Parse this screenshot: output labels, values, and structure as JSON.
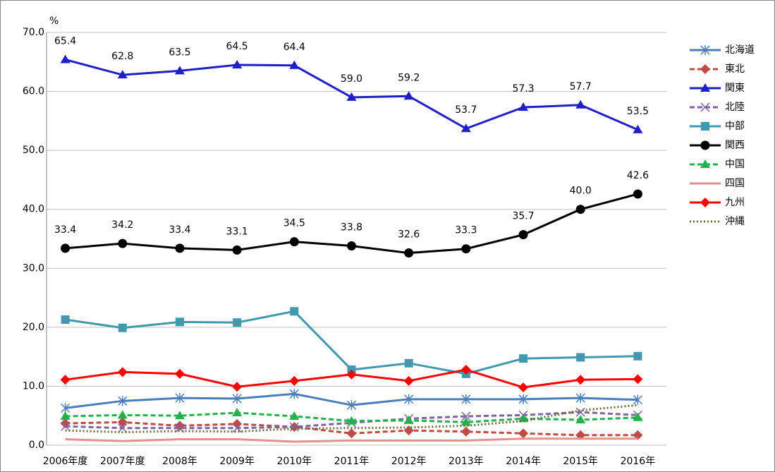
{
  "chart_data": {
    "type": "line",
    "y_unit": "%",
    "categories": [
      "2006年度",
      "2007年度",
      "2008年",
      "2009年",
      "2010年",
      "2011年",
      "2012年",
      "2013年",
      "2014年",
      "2015年",
      "2016年"
    ],
    "ylim": [
      0,
      70
    ],
    "yticks": [
      {
        "value": 0,
        "label": "0.0"
      },
      {
        "value": 10,
        "label": "10.0"
      },
      {
        "value": 20,
        "label": "20.0"
      },
      {
        "value": 30,
        "label": "30.0"
      },
      {
        "value": 40,
        "label": "40.0"
      },
      {
        "value": 50,
        "label": "50.0"
      },
      {
        "value": 60,
        "label": "60.0"
      },
      {
        "value": 70,
        "label": "70.0"
      }
    ],
    "grid": true,
    "legend": "right",
    "series": [
      {
        "name": "北海道",
        "color": "#4a7ebb",
        "marker": "asterisk",
        "dash": "solid",
        "values": [
          6.3,
          7.5,
          8.0,
          7.9,
          8.7,
          6.8,
          7.8,
          7.8,
          7.8,
          8.0,
          7.7
        ]
      },
      {
        "name": "東北",
        "color": "#be4b48",
        "marker": "diamond",
        "dash": "dashed",
        "values": [
          3.7,
          3.9,
          3.3,
          3.6,
          3.1,
          2.0,
          2.5,
          2.3,
          2.0,
          1.7,
          1.7
        ]
      },
      {
        "name": "関東",
        "color": "#1f1fc8",
        "marker": "triangle",
        "dash": "solid",
        "values": [
          65.4,
          62.8,
          63.5,
          64.5,
          64.4,
          59,
          59.2,
          53.7,
          57.3,
          57.7,
          53.5
        ],
        "value_labels": [
          "65.4",
          "62.8",
          "63.5",
          "64.5",
          "64.4",
          "59.0",
          "59.2",
          "53.7",
          "57.3",
          "57.7",
          "53.5"
        ]
      },
      {
        "name": "北陸",
        "color": "#7f63a2",
        "marker": "x",
        "dash": "dashed",
        "values": [
          3.2,
          2.9,
          2.9,
          2.9,
          3.1,
          3.8,
          4.5,
          4.9,
          5.1,
          5.6,
          5.1
        ]
      },
      {
        "name": "中部",
        "color": "#4198af",
        "marker": "square",
        "dash": "solid",
        "values": [
          21.3,
          19.9,
          20.9,
          20.8,
          22.7,
          12.8,
          13.9,
          12.1,
          14.7,
          14.9,
          15.1
        ]
      },
      {
        "name": "関西",
        "color": "#000000",
        "marker": "circle",
        "dash": "solid",
        "values": [
          33.4,
          34.2,
          33.4,
          33.1,
          34.5,
          33.8,
          32.6,
          33.3,
          35.7,
          40,
          42.6
        ],
        "value_labels": [
          "33.4",
          "34.2",
          "33.4",
          "33.1",
          "34.5",
          "33.8",
          "32.6",
          "33.3",
          "35.7",
          "40.0",
          "42.6"
        ]
      },
      {
        "name": "中国",
        "color": "#22b14c",
        "marker": "triangle",
        "dash": "dashed",
        "values": [
          4.9,
          5.1,
          5.0,
          5.5,
          4.9,
          4.1,
          4.2,
          3.9,
          4.5,
          4.3,
          4.7
        ]
      },
      {
        "name": "四国",
        "color": "#e6908c",
        "marker": "none",
        "dash": "solid",
        "values": [
          1.0,
          0.7,
          1.0,
          1.0,
          0.6,
          0.8,
          0.8,
          0.8,
          1.1,
          1.1,
          1.1
        ]
      },
      {
        "name": "九州",
        "color": "#ff0000",
        "marker": "diamond",
        "dash": "solid",
        "values": [
          11.1,
          12.4,
          12.1,
          9.9,
          10.9,
          12.0,
          10.9,
          12.8,
          9.8,
          11.1,
          11.2
        ]
      },
      {
        "name": "沖縄",
        "color": "#6b6b3a",
        "marker": "none",
        "dash": "dotted",
        "values": [
          2.5,
          2.2,
          2.4,
          2.3,
          2.8,
          2.9,
          3.0,
          3.3,
          4.1,
          5.9,
          6.8
        ]
      }
    ]
  }
}
